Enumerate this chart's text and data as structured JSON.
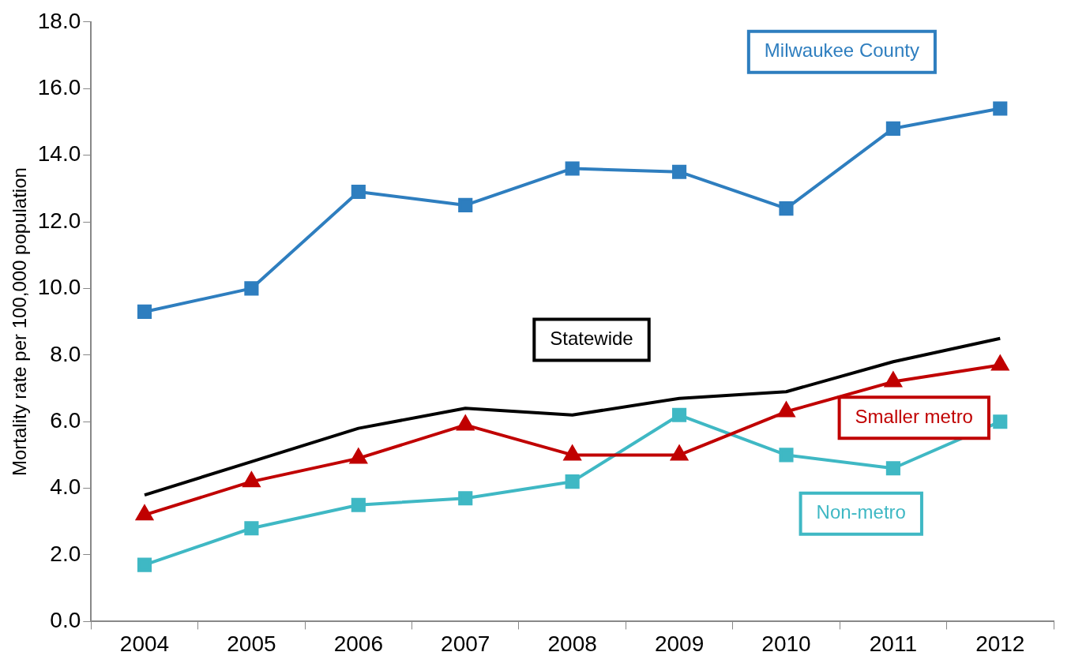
{
  "chart_data": {
    "type": "line",
    "ylabel": "Mortality rate per 100,000 population",
    "categories": [
      "2004",
      "2005",
      "2006",
      "2007",
      "2008",
      "2009",
      "2010",
      "2011",
      "2012"
    ],
    "series": [
      {
        "name": "Milwaukee County",
        "color": "#2e7ebf",
        "marker": "square",
        "values": [
          9.3,
          10.0,
          12.9,
          12.5,
          13.6,
          13.5,
          12.4,
          14.8,
          15.4
        ]
      },
      {
        "name": "Statewide",
        "color": "#000000",
        "marker": "none",
        "values": [
          3.8,
          4.8,
          5.8,
          6.4,
          6.2,
          6.7,
          6.9,
          7.8,
          8.5
        ]
      },
      {
        "name": "Smaller metro",
        "color": "#c00000",
        "marker": "triangle",
        "values": [
          3.2,
          4.2,
          4.9,
          5.9,
          5.0,
          5.0,
          6.3,
          7.2,
          7.7
        ]
      },
      {
        "name": "Non-metro",
        "color": "#3fb8c4",
        "marker": "square",
        "values": [
          1.7,
          2.8,
          3.5,
          3.7,
          4.2,
          6.2,
          5.0,
          4.6,
          6.0
        ]
      }
    ],
    "ylim": [
      0,
      18
    ],
    "yticks": [
      {
        "value": 0,
        "label": "0.0"
      },
      {
        "value": 2,
        "label": "2.0"
      },
      {
        "value": 4,
        "label": "4.0"
      },
      {
        "value": 6,
        "label": "6.0"
      },
      {
        "value": 8,
        "label": "8.0"
      },
      {
        "value": 10,
        "label": "10.0"
      },
      {
        "value": 12,
        "label": "12.0"
      },
      {
        "value": 14,
        "label": "14.0"
      },
      {
        "value": 16,
        "label": "16.0"
      },
      {
        "value": 18,
        "label": "18.0"
      }
    ],
    "grid": false,
    "legend": false,
    "line_style": "solid"
  }
}
